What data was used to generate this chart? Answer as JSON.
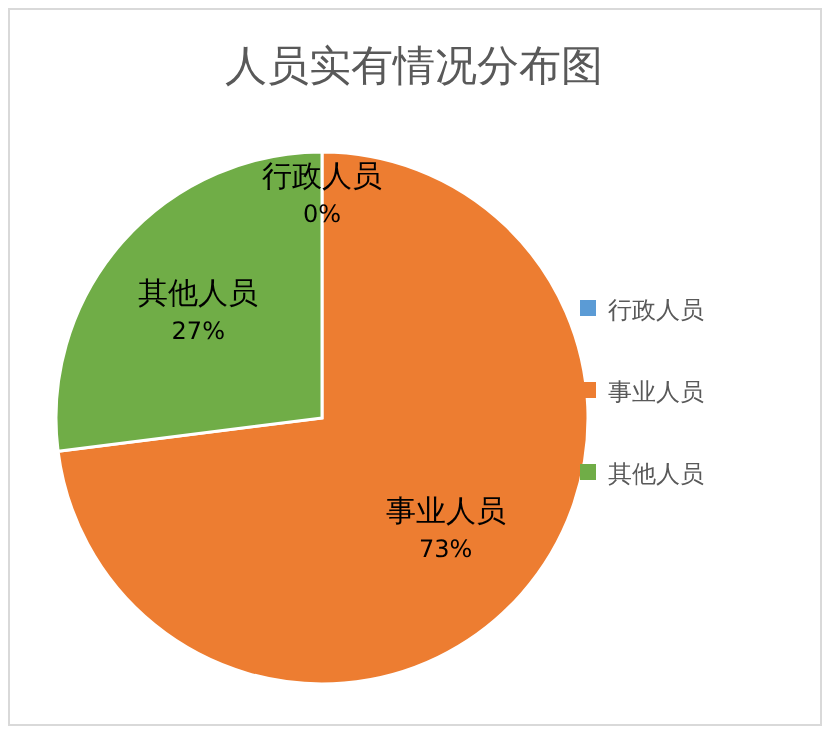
{
  "chart_data": {
    "type": "pie",
    "title": "人员实有情况分布图",
    "categories": [
      "行政人员",
      "事业人员",
      "其他人员"
    ],
    "values": [
      0,
      73,
      27
    ],
    "colors": [
      "#5b9bd5",
      "#ed7d31",
      "#70ad47"
    ],
    "value_labels": [
      "0%",
      "73%",
      "27%"
    ],
    "legend": "right"
  }
}
